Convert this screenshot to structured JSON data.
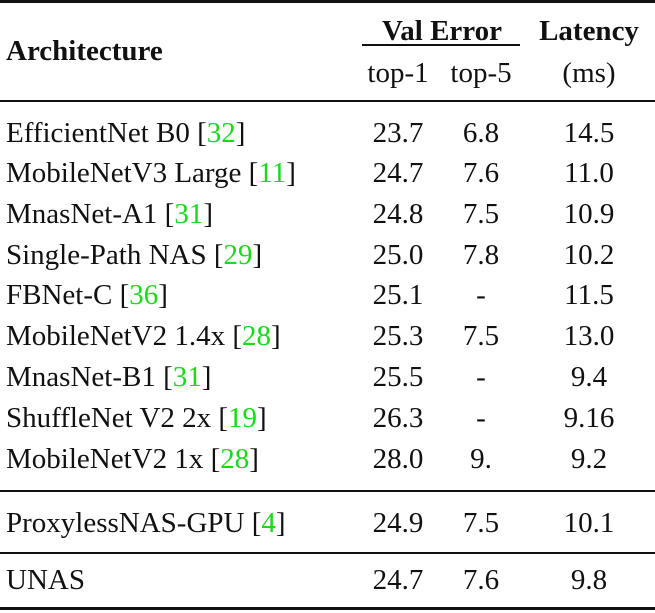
{
  "table": {
    "header": {
      "architecture": "Architecture",
      "val_error": "Val Error",
      "latency": "Latency",
      "top1": "top-1",
      "top5": "top-5",
      "latency_unit": "(ms)"
    },
    "rows": [
      {
        "name": "EfficientNet B0 [",
        "ref": "32",
        "close": "]",
        "top1": "23.7",
        "top5": "6.8",
        "latency": "14.5"
      },
      {
        "name": "MobileNetV3 Large [",
        "ref": "11",
        "close": "]",
        "top1": "24.7",
        "top5": "7.6",
        "latency": "11.0"
      },
      {
        "name": "MnasNet-A1 [",
        "ref": "31",
        "close": "]",
        "top1": "24.8",
        "top5": "7.5",
        "latency": "10.9"
      },
      {
        "name": "Single-Path NAS [",
        "ref": "29",
        "close": "]",
        "top1": "25.0",
        "top5": "7.8",
        "latency": "10.2"
      },
      {
        "name": "FBNet-C [",
        "ref": "36",
        "close": "]",
        "top1": "25.1",
        "top5": "-",
        "latency": "11.5"
      },
      {
        "name": "MobileNetV2 1.4x [",
        "ref": "28",
        "close": "]",
        "top1": "25.3",
        "top5": "7.5",
        "latency": "13.0"
      },
      {
        "name": "MnasNet-B1 [",
        "ref": "31",
        "close": "]",
        "top1": "25.5",
        "top5": "-",
        "latency": "9.4"
      },
      {
        "name": "ShuffleNet V2 2x [",
        "ref": "19",
        "close": "]",
        "top1": "26.3",
        "top5": "-",
        "latency": "9.16"
      },
      {
        "name": "MobileNetV2 1x [",
        "ref": "28",
        "close": "]",
        "top1": "28.0",
        "top5": "9.",
        "latency": "9.2"
      }
    ],
    "proxyless": {
      "name": "ProxylessNAS-GPU [",
      "ref": "4",
      "close": "]",
      "top1": "24.9",
      "top5": "7.5",
      "latency": "10.1"
    },
    "unas": {
      "name": "UNAS",
      "top1": "24.7",
      "top5": "7.6",
      "latency": "9.8"
    }
  },
  "colors": {
    "reference_link": "#19d919",
    "rule": "#111111"
  }
}
